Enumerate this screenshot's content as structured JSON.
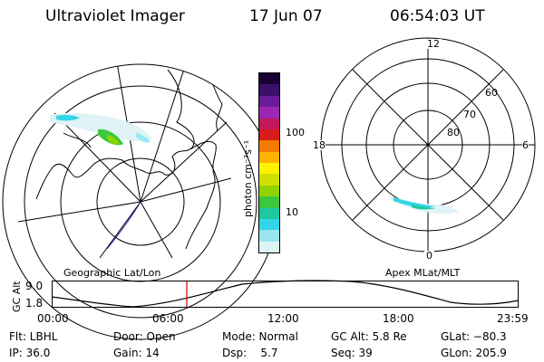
{
  "header": {
    "title": "Ultraviolet Imager",
    "date": "17 Jun 07",
    "time": "06:54:03 UT"
  },
  "panels": {
    "left_label": "Geographic Lat/Lon",
    "right_label": "Apex MLat/MLT"
  },
  "colorbar": {
    "unit_label": "photon cm⁻²s⁻¹",
    "ticks": [
      "100",
      "10"
    ],
    "colors": [
      "#1a0033",
      "#3b0f6b",
      "#6a1b9a",
      "#9c27b0",
      "#c2185b",
      "#d81b1b",
      "#f57c00",
      "#ffb300",
      "#fff200",
      "#cde000",
      "#8fd400",
      "#3cc83c",
      "#1ec8a0",
      "#33d6e6",
      "#99e6f0",
      "#dff3f7"
    ]
  },
  "polar": {
    "labels": [
      "12",
      "18",
      "6",
      "0"
    ],
    "lat_labels": [
      "60",
      "70",
      "80"
    ]
  },
  "altitude_plot": {
    "ylabel": "GC Alt",
    "yticks": [
      "9.0",
      "1.8"
    ],
    "xticks": [
      "00:00",
      "06:00",
      "12:00",
      "18:00",
      "23:59"
    ],
    "marker_color": "#cc0000"
  },
  "info": {
    "flt": "Flt: LBHL",
    "ip": "IP: 36.0",
    "door": "Door: Open",
    "gain": "Gain: 14",
    "mode": "Mode: Normal",
    "dsp": "Dsp:    5.7",
    "gcalt": "GC Alt: 5.8 Re",
    "seq": "Seq: 39",
    "glat": "GLat: −80.3",
    "glon": "GLon: 205.9"
  }
}
